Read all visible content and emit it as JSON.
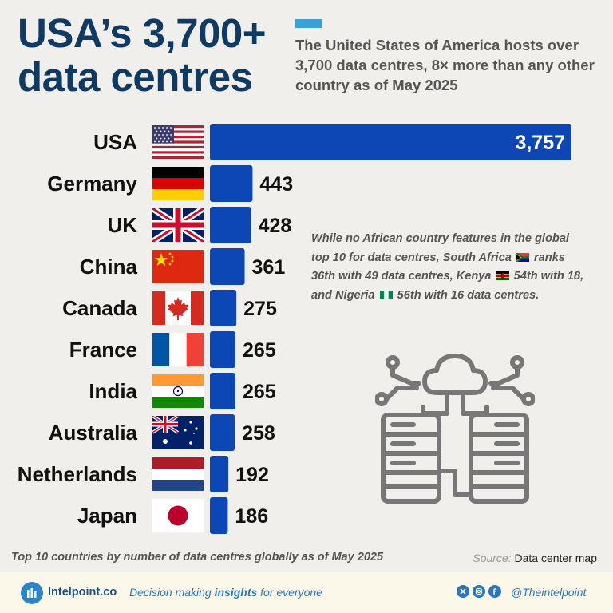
{
  "header": {
    "title": "USA’s 3,700+ data centres",
    "subtitle": "The United States of America hosts over 3,700 data centres, 8× more than any other country as of May 2025"
  },
  "chart_data": {
    "type": "bar",
    "orientation": "horizontal",
    "categories": [
      "USA",
      "Germany",
      "UK",
      "China",
      "Canada",
      "France",
      "India",
      "Australia",
      "Netherlands",
      "Japan"
    ],
    "values": [
      3757,
      443,
      428,
      361,
      275,
      265,
      265,
      258,
      192,
      186
    ],
    "value_labels": [
      "3,757",
      "443",
      "428",
      "361",
      "275",
      "265",
      "265",
      "258",
      "192",
      "186"
    ],
    "bar_color": "#0d47b5",
    "title": "",
    "xlabel": "",
    "ylabel": ""
  },
  "flags": [
    "us-flag-icon",
    "germany-flag-icon",
    "uk-flag-icon",
    "china-flag-icon",
    "canada-flag-icon",
    "france-flag-icon",
    "india-flag-icon",
    "australia-flag-icon",
    "netherlands-flag-icon",
    "japan-flag-icon"
  ],
  "note": {
    "part1": "While no African country features in the global top 10 for data centres, South Africa",
    "part2": "ranks 36th with 49 data centres, Kenya",
    "part3": "54th with 18, and Nigeria",
    "part4": "56th with 16 data centres."
  },
  "footer": {
    "caption": "Top 10 countries by number of data centres globally as of May 2025",
    "source_label": "Source:",
    "source_value": "Data center map",
    "brand": "Intelpoint.co",
    "tagline_a": "Decision making",
    "tagline_b": "insights",
    "tagline_c": "for everyone",
    "handle": "@Theintelpoint"
  },
  "colors": {
    "title": "#0e3a63",
    "accent": "#3aa0d8",
    "bar": "#0d47b5",
    "footer_bg": "#fbf8e9",
    "brand_blue": "#2a76c1"
  }
}
